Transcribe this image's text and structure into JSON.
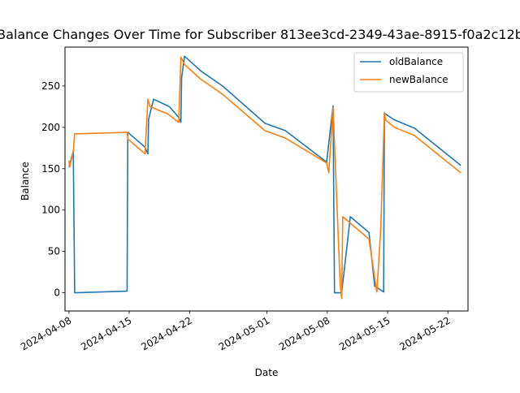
{
  "chart_data": {
    "type": "line",
    "title": "Balance Changes Over Time for Subscriber 813ee3cd-2349-43ae-8915-f0a2c12b",
    "xlabel": "Date",
    "ylabel": "Balance",
    "x_axis": {
      "kind": "date",
      "range": [
        "2024-04-07T13:00",
        "2024-05-24T08:00"
      ],
      "ticks": [
        "2024-04-08",
        "2024-04-15",
        "2024-04-22",
        "2024-05-01",
        "2024-05-08",
        "2024-05-15",
        "2024-05-22"
      ]
    },
    "y_axis": {
      "range": [
        -22,
        297
      ],
      "ticks": [
        0,
        50,
        100,
        150,
        200,
        250
      ]
    },
    "grid": false,
    "legend": {
      "placement": "top-right"
    },
    "series": [
      {
        "name": "oldBalance",
        "color": "#1f77b4",
        "points": [
          [
            "2024-04-08T00:00",
            152
          ],
          [
            "2024-04-08T12:00",
            171
          ],
          [
            "2024-04-08T16:00",
            0
          ],
          [
            "2024-04-14T18:00",
            2
          ],
          [
            "2024-04-14T20:00",
            194
          ],
          [
            "2024-04-16T20:00",
            176
          ],
          [
            "2024-04-17T04:00",
            168
          ],
          [
            "2024-04-17T06:00",
            210
          ],
          [
            "2024-04-17T20:00",
            234
          ],
          [
            "2024-04-19T16:00",
            225
          ],
          [
            "2024-04-20T18:00",
            212
          ],
          [
            "2024-04-21T00:00",
            206
          ],
          [
            "2024-04-21T02:00",
            260
          ],
          [
            "2024-04-21T10:00",
            286
          ],
          [
            "2024-04-23T08:00",
            268
          ],
          [
            "2024-04-25T20:00",
            250
          ],
          [
            "2024-04-30T18:00",
            205
          ],
          [
            "2024-05-03T03:00",
            196
          ],
          [
            "2024-05-07T22:00",
            158
          ],
          [
            "2024-05-08T16:00",
            226
          ],
          [
            "2024-05-08T20:00",
            0
          ],
          [
            "2024-05-09T16:00",
            0
          ],
          [
            "2024-05-10T16:00",
            92
          ],
          [
            "2024-05-12T20:00",
            73
          ],
          [
            "2024-05-13T12:00",
            8
          ],
          [
            "2024-05-14T13:00",
            1
          ],
          [
            "2024-05-14T15:00",
            217
          ],
          [
            "2024-05-15T19:00",
            209
          ],
          [
            "2024-05-18T03:00",
            199
          ],
          [
            "2024-05-23T12:00",
            154
          ]
        ]
      },
      {
        "name": "newBalance",
        "color": "#ff7f0e",
        "points": [
          [
            "2024-04-08T00:00",
            160
          ],
          [
            "2024-04-08T02:00",
            152
          ],
          [
            "2024-04-08T12:00",
            171
          ],
          [
            "2024-04-08T16:00",
            192
          ],
          [
            "2024-04-14T18:00",
            194
          ],
          [
            "2024-04-14T20:00",
            186
          ],
          [
            "2024-04-16T20:00",
            168
          ],
          [
            "2024-04-17T04:00",
            234
          ],
          [
            "2024-04-17T10:00",
            225
          ],
          [
            "2024-04-19T12:00",
            216
          ],
          [
            "2024-04-20T18:00",
            206
          ],
          [
            "2024-04-21T00:00",
            285
          ],
          [
            "2024-04-21T10:00",
            276
          ],
          [
            "2024-04-23T08:00",
            258
          ],
          [
            "2024-04-25T20:00",
            240
          ],
          [
            "2024-04-30T18:00",
            196
          ],
          [
            "2024-05-03T03:00",
            187
          ],
          [
            "2024-05-07T22:00",
            157
          ],
          [
            "2024-05-08T04:00",
            145
          ],
          [
            "2024-05-08T16:00",
            224
          ],
          [
            "2024-05-09T12:00",
            8
          ],
          [
            "2024-05-09T16:00",
            -7
          ],
          [
            "2024-05-09T19:00",
            92
          ],
          [
            "2024-05-12T20:00",
            65
          ],
          [
            "2024-05-13T18:00",
            1
          ],
          [
            "2024-05-14T05:00",
            78
          ],
          [
            "2024-05-14T15:00",
            218
          ],
          [
            "2024-05-14T18:00",
            209
          ],
          [
            "2024-05-15T19:00",
            200
          ],
          [
            "2024-05-18T03:00",
            190
          ],
          [
            "2024-05-23T12:00",
            145
          ]
        ]
      }
    ]
  }
}
